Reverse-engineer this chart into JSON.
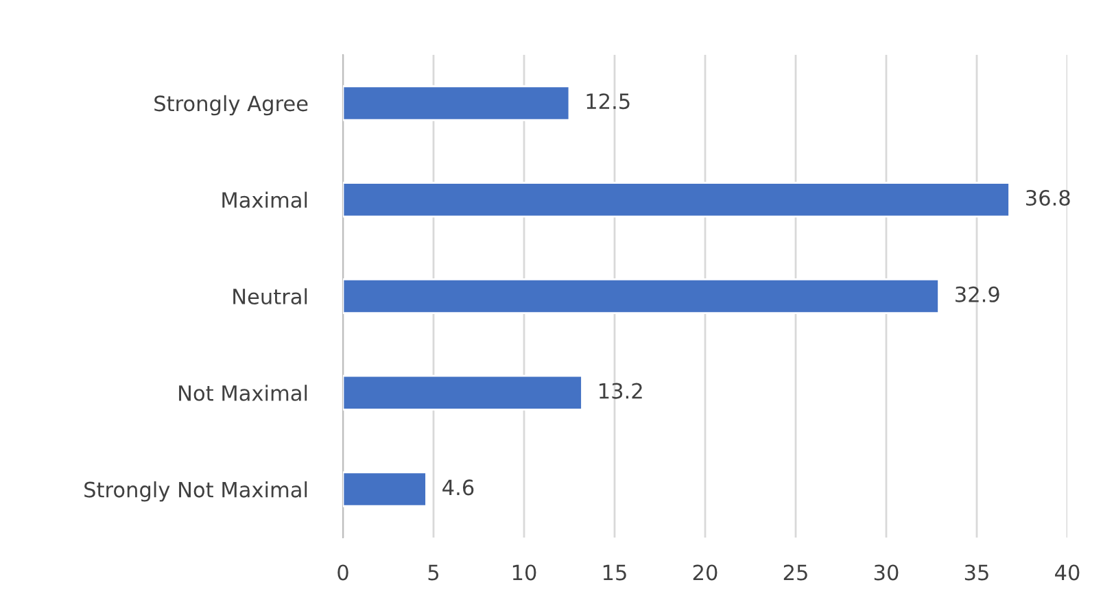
{
  "chart_data": {
    "type": "bar",
    "orientation": "horizontal",
    "categories": [
      "Strongly Agree",
      "Maximal",
      "Neutral",
      "Not Maximal",
      "Strongly Not Maximal"
    ],
    "values": [
      12.5,
      36.8,
      32.9,
      13.2,
      4.6
    ],
    "color": "#4472c4",
    "xlim": [
      0,
      40
    ],
    "xticks": [
      0,
      5,
      10,
      15,
      20,
      25,
      30,
      35,
      40
    ],
    "grid": "x",
    "data_labels": true
  }
}
